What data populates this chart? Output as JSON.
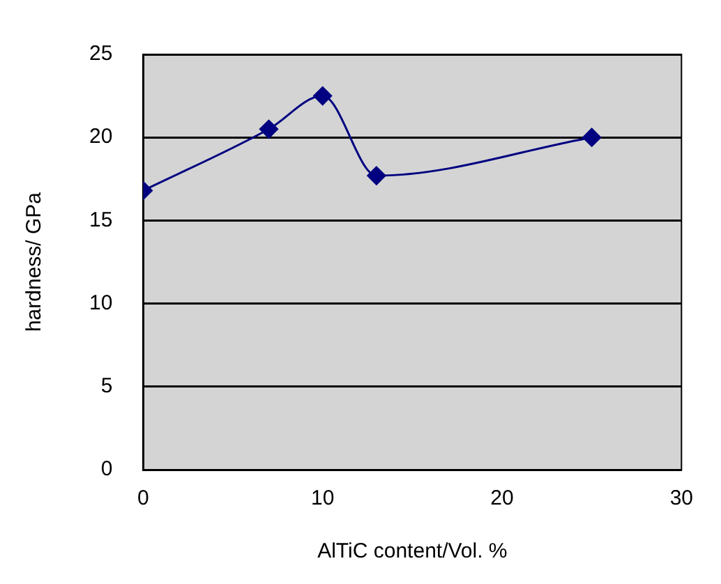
{
  "chart_data": {
    "type": "line",
    "xlabel": "AlTiC content/Vol. %",
    "ylabel": "hardness/ GPa",
    "x": [
      0,
      7,
      10,
      13,
      25
    ],
    "series": [
      {
        "color": "#000080",
        "values": [
          16.8,
          20.5,
          22.5,
          17.7,
          20.0
        ]
      }
    ],
    "xlim": [
      0,
      30
    ],
    "xticks": [
      0,
      10,
      20,
      30
    ],
    "ylim": [
      0,
      25
    ],
    "yticks": [
      0,
      5,
      10,
      15,
      20,
      25
    ],
    "grid": "y",
    "legend": false,
    "marker": "diamond",
    "line_style": "solid"
  }
}
